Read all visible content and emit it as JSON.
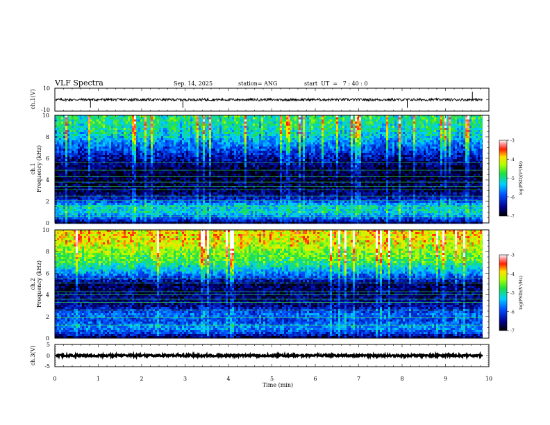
{
  "header": {
    "title": "VLF Spectra",
    "date": "Sep. 14, 2025",
    "station": "station= ANG",
    "start": "start  UT  =   7 : 40 : 0"
  },
  "chart_data": [
    {
      "type": "line",
      "panel": "ch1-waveform",
      "ylabel": "ch.1(V)",
      "ylim": [
        -10,
        10
      ],
      "yticks": [
        "10",
        "-10"
      ],
      "baseline": 0,
      "spikes_min": [
        0.82,
        2.95,
        8.12,
        9.62
      ]
    },
    {
      "type": "heatmap",
      "panel": "ch1-spectrogram",
      "ylabel": "ch.1 Frequency (kHz)",
      "ylim": [
        0,
        10
      ],
      "yticks": [
        "0",
        "2",
        "4",
        "6",
        "8",
        "10"
      ],
      "colorbar": {
        "label": "log(PSD)(V²/Hz)",
        "ticks": [
          "-3",
          "-4",
          "-5",
          "-6",
          "-7"
        ],
        "range": [
          -7,
          -3
        ]
      },
      "bands_khz": [
        0.6,
        1.5,
        2.1,
        2.5,
        3.1,
        3.4,
        3.8,
        4.3,
        4.9,
        5.6
      ],
      "intensity_profile": [
        {
          "f": 0,
          "v": -6.6
        },
        {
          "f": 0.5,
          "v": -5.8
        },
        {
          "f": 1.0,
          "v": -5.2
        },
        {
          "f": 1.6,
          "v": -5.3
        },
        {
          "f": 2.2,
          "v": -6.3
        },
        {
          "f": 3.0,
          "v": -6.7
        },
        {
          "f": 4.0,
          "v": -6.8
        },
        {
          "f": 5.0,
          "v": -6.8
        },
        {
          "f": 6.0,
          "v": -6.4
        },
        {
          "f": 7.0,
          "v": -5.9
        },
        {
          "f": 8.0,
          "v": -5.3
        },
        {
          "f": 9.0,
          "v": -5.0
        },
        {
          "f": 10.0,
          "v": -4.9
        }
      ]
    },
    {
      "type": "heatmap",
      "panel": "ch2-spectrogram",
      "ylabel": "ch.2 Frequency (kHz)",
      "ylim": [
        0,
        10
      ],
      "yticks": [
        "0",
        "2",
        "4",
        "6",
        "8",
        "10"
      ],
      "colorbar": {
        "label": "log(PSD)(V²/Hz)",
        "ticks": [
          "-3",
          "-4",
          "-5",
          "-6",
          "-7"
        ],
        "range": [
          -7,
          -3
        ]
      },
      "bands_khz": [
        1.2,
        1.9,
        2.6,
        3.3,
        3.6,
        4.0,
        4.3,
        5.1,
        5.5
      ],
      "intensity_profile": [
        {
          "f": 0,
          "v": -6.8
        },
        {
          "f": 0.5,
          "v": -6.0
        },
        {
          "f": 1.0,
          "v": -5.6
        },
        {
          "f": 1.6,
          "v": -6.0
        },
        {
          "f": 2.2,
          "v": -5.8
        },
        {
          "f": 3.0,
          "v": -6.5
        },
        {
          "f": 4.0,
          "v": -6.6
        },
        {
          "f": 5.0,
          "v": -6.7
        },
        {
          "f": 6.0,
          "v": -5.6
        },
        {
          "f": 7.0,
          "v": -4.8
        },
        {
          "f": 8.0,
          "v": -4.4
        },
        {
          "f": 9.0,
          "v": -4.0
        },
        {
          "f": 10.0,
          "v": -3.9
        }
      ]
    },
    {
      "type": "line",
      "panel": "ch3-waveform",
      "ylabel": "ch.3(V)",
      "ylim": [
        -5,
        5
      ],
      "yticks": [
        "5",
        "0",
        "-5"
      ],
      "baseline": 0
    }
  ],
  "xaxis": {
    "label": "Time (min)",
    "range": [
      0,
      10
    ],
    "ticks": [
      "0",
      "1",
      "2",
      "3",
      "4",
      "5",
      "6",
      "7",
      "8",
      "9",
      "10"
    ],
    "data_end_min": 9.85
  }
}
